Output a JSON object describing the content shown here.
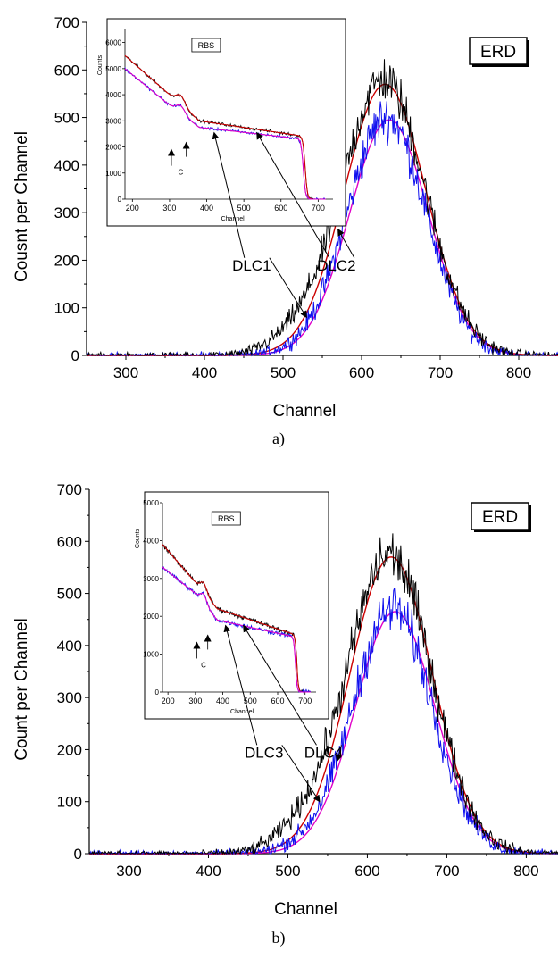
{
  "colors": {
    "black": "#000000",
    "red": "#cc0000",
    "blue": "#1010ee",
    "magenta": "#e000c8"
  },
  "chart_data": [
    {
      "type": "line",
      "caption": "a)",
      "xlabel": "Channel",
      "ylabel": "Cousnt per Channel",
      "xlim": [
        250,
        850
      ],
      "ylim": [
        0,
        700
      ],
      "xticks": [
        300,
        400,
        500,
        600,
        700,
        800
      ],
      "yticks": [
        0,
        100,
        200,
        300,
        400,
        500,
        600,
        700
      ],
      "box_label": "ERD",
      "annotations": [
        {
          "text": "DLC1",
          "at": [
            460,
            190
          ],
          "points_to": [
            [
              420,
              500
            ],
            [
              530,
              80
            ]
          ]
        },
        {
          "text": "DLC2",
          "at": [
            568,
            190
          ],
          "points_to": [
            [
              535,
              500
            ],
            [
              570,
              265
            ]
          ]
        }
      ],
      "peak_curves": [
        {
          "color": "black",
          "center": 628,
          "height": 580,
          "sigma": 53,
          "shoulder": 30
        },
        {
          "color": "red",
          "center": 630,
          "height": 570,
          "sigma": 52,
          "shoulder": 0
        },
        {
          "color": "blue",
          "center": 632,
          "height": 500,
          "sigma": 50,
          "shoulder": 5
        },
        {
          "color": "magenta",
          "center": 635,
          "height": 495,
          "sigma": 50,
          "shoulder": 0
        }
      ],
      "inset": {
        "title": "RBS",
        "xlabel": "Channel",
        "ylabel": "Counts",
        "xlim": [
          180,
          740
        ],
        "ylim": [
          0,
          6500
        ],
        "xticks": [
          200,
          300,
          400,
          500,
          600,
          700
        ],
        "yticks": [
          0,
          1000,
          2000,
          3000,
          4000,
          5000,
          6000
        ],
        "marker_label": "C",
        "upper": {
          "start": 5500,
          "bump": 4000,
          "plateau": 3000,
          "end": 2400,
          "edge": 665
        },
        "lower": {
          "start": 5000,
          "bump": 3600,
          "plateau": 2750,
          "end": 2300,
          "edge": 660
        }
      }
    },
    {
      "type": "line",
      "caption": "b)",
      "xlabel": "Channel",
      "ylabel": "Count per Channel",
      "xlim": [
        250,
        840
      ],
      "ylim": [
        0,
        700
      ],
      "xticks": [
        300,
        400,
        500,
        600,
        700,
        800
      ],
      "yticks": [
        0,
        100,
        200,
        300,
        400,
        500,
        600,
        700
      ],
      "box_label": "ERD",
      "annotations": [
        {
          "text": "DLC3",
          "at": [
            470,
            195
          ],
          "points_to": [
            [
              410,
              500
            ],
            [
              540,
              100
            ]
          ]
        },
        {
          "text": "DLC4",
          "at": [
            545,
            195
          ],
          "points_to": [
            [
              475,
              500
            ],
            [
              562,
              178
            ]
          ]
        }
      ],
      "peak_curves": [
        {
          "color": "black",
          "center": 628,
          "height": 575,
          "sigma": 53,
          "shoulder": 35
        },
        {
          "color": "red",
          "center": 630,
          "height": 570,
          "sigma": 52,
          "shoulder": 0
        },
        {
          "color": "blue",
          "center": 632,
          "height": 470,
          "sigma": 50,
          "shoulder": 10
        },
        {
          "color": "magenta",
          "center": 635,
          "height": 465,
          "sigma": 50,
          "shoulder": 0
        }
      ],
      "inset": {
        "title": "RBS",
        "xlabel": "Channel",
        "ylabel": "Counts",
        "xlim": [
          180,
          740
        ],
        "ylim": [
          0,
          5000
        ],
        "xticks": [
          200,
          300,
          400,
          500,
          600,
          700
        ],
        "yticks": [
          0,
          1000,
          2000,
          3000,
          4000,
          5000
        ],
        "marker_label": "C",
        "upper": {
          "start": 3900,
          "bump": 2900,
          "plateau": 2200,
          "end": 1500,
          "edge": 670
        },
        "lower": {
          "start": 3300,
          "bump": 2600,
          "plateau": 1900,
          "end": 1450,
          "edge": 665
        }
      }
    }
  ]
}
